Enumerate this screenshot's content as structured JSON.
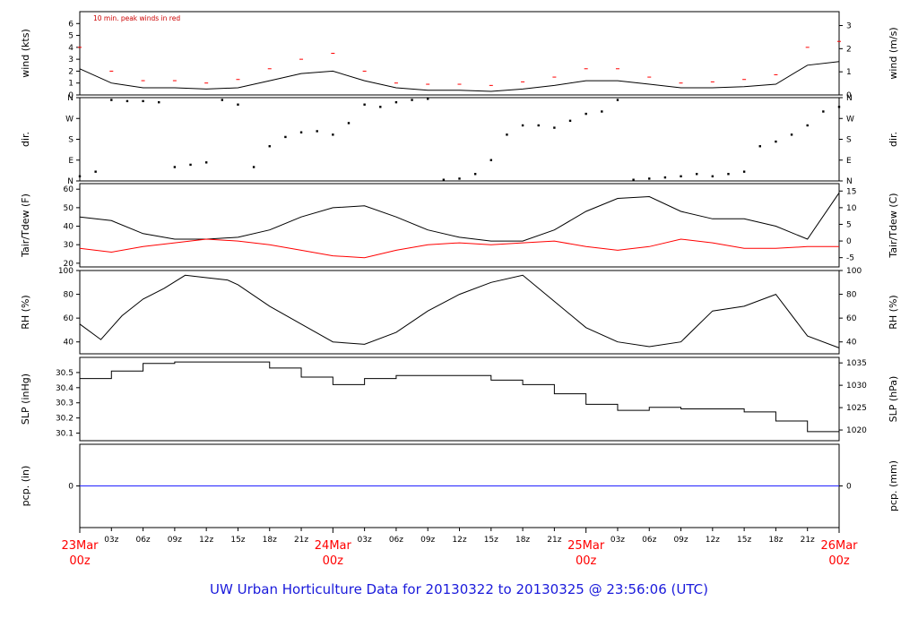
{
  "title": "UW Urban Horticulture Data for 20130322  to  20130325 @ 23:56:06  (UTC)",
  "chart_data": [
    {
      "type": "line",
      "id": "wind",
      "ylabel_left": "wind (kts)",
      "ylabel_right": "wind (m/s)",
      "annotation": "10 min. peak winds in red",
      "ylim": [
        0,
        7
      ],
      "yticks_left": [
        0,
        1,
        2,
        3,
        4,
        5,
        6
      ],
      "yticks_right": [
        0,
        1,
        2,
        3
      ],
      "series": [
        {
          "role": "mean",
          "color": "#000000",
          "x": [
            0,
            3,
            6,
            9,
            12,
            15,
            18,
            21,
            24,
            27,
            30,
            33,
            36,
            39,
            42,
            45,
            48,
            51,
            54,
            57,
            60,
            63,
            66,
            69,
            72
          ],
          "y": [
            2.2,
            1.0,
            0.6,
            0.6,
            0.5,
            0.6,
            1.2,
            1.8,
            2.0,
            1.2,
            0.6,
            0.4,
            0.4,
            0.3,
            0.5,
            0.8,
            1.2,
            1.2,
            0.9,
            0.6,
            0.6,
            0.7,
            0.9,
            2.5,
            2.8
          ]
        },
        {
          "role": "peak",
          "color": "#ff0000",
          "x": [
            0,
            3,
            6,
            9,
            12,
            15,
            18,
            21,
            24,
            27,
            30,
            33,
            36,
            39,
            42,
            45,
            48,
            51,
            54,
            57,
            60,
            63,
            66,
            69,
            72
          ],
          "y": [
            4.0,
            2.0,
            1.2,
            1.2,
            1.0,
            1.3,
            2.2,
            3.0,
            3.5,
            2.0,
            1.0,
            0.9,
            0.9,
            0.8,
            1.1,
            1.5,
            2.2,
            2.2,
            1.5,
            1.0,
            1.1,
            1.3,
            1.7,
            4.0,
            4.5
          ]
        }
      ]
    },
    {
      "type": "scatter",
      "id": "dir",
      "ylabel_left": "dir.",
      "ylabel_right": "dir.",
      "ylim": [
        0,
        360
      ],
      "yticks": [
        {
          "v": 0,
          "label": "N"
        },
        {
          "v": 90,
          "label": "E"
        },
        {
          "v": 180,
          "label": "S"
        },
        {
          "v": 270,
          "label": "W"
        },
        {
          "v": 360,
          "label": "N"
        }
      ],
      "series": [
        {
          "color": "#000000",
          "x": [
            0,
            1.5,
            3,
            4.5,
            6,
            7.5,
            9,
            10.5,
            12,
            13.5,
            15,
            16.5,
            18,
            19.5,
            21,
            22.5,
            24,
            25.5,
            27,
            28.5,
            30,
            31.5,
            33,
            34.5,
            36,
            37.5,
            39,
            40.5,
            42,
            43.5,
            45,
            46.5,
            48,
            49.5,
            51,
            52.5,
            54,
            55.5,
            57,
            58.5,
            60,
            61.5,
            63,
            64.5,
            66,
            67.5,
            69,
            70.5,
            72
          ],
          "y": [
            20,
            40,
            350,
            345,
            345,
            340,
            60,
            70,
            80,
            350,
            330,
            60,
            150,
            190,
            210,
            215,
            200,
            250,
            330,
            320,
            340,
            350,
            355,
            5,
            10,
            30,
            90,
            200,
            240,
            240,
            230,
            260,
            290,
            300,
            350,
            5,
            10,
            15,
            20,
            30,
            20,
            30,
            40,
            150,
            170,
            200,
            240,
            300,
            320
          ]
        }
      ]
    },
    {
      "type": "line",
      "id": "temp",
      "ylabel_left": "Tair/Tdew (F)",
      "ylabel_right": "Tair/Tdew (C)",
      "ylim": [
        18,
        63
      ],
      "yticks_left": [
        20,
        30,
        40,
        50,
        60
      ],
      "yticks_right": [
        -5,
        0,
        5,
        10,
        15
      ],
      "series": [
        {
          "role": "Tair",
          "color": "#000000",
          "x": [
            0,
            3,
            6,
            9,
            12,
            15,
            18,
            21,
            24,
            27,
            30,
            33,
            36,
            39,
            42,
            45,
            48,
            51,
            54,
            57,
            60,
            63,
            66,
            69,
            72
          ],
          "y": [
            45,
            43,
            36,
            33,
            33,
            34,
            38,
            45,
            50,
            51,
            45,
            38,
            34,
            32,
            32,
            38,
            48,
            55,
            56,
            48,
            44,
            44,
            40,
            33,
            58
          ]
        },
        {
          "role": "Tdew",
          "color": "#ff0000",
          "x": [
            0,
            3,
            6,
            9,
            12,
            15,
            18,
            21,
            24,
            27,
            30,
            33,
            36,
            39,
            42,
            45,
            48,
            51,
            54,
            57,
            60,
            63,
            66,
            69,
            72
          ],
          "y": [
            28,
            26,
            29,
            31,
            33,
            32,
            30,
            27,
            24,
            23,
            27,
            30,
            31,
            30,
            31,
            32,
            29,
            27,
            29,
            33,
            31,
            28,
            28,
            29,
            29
          ]
        }
      ]
    },
    {
      "type": "line",
      "id": "rh",
      "ylabel_left": "RH (%)",
      "ylabel_right": "RH (%)",
      "ylim": [
        30,
        100
      ],
      "yticks_left": [
        40,
        60,
        80,
        100
      ],
      "yticks_right": [
        40,
        60,
        80,
        100
      ],
      "series": [
        {
          "color": "#000000",
          "x": [
            0,
            2,
            4,
            6,
            8,
            10,
            12,
            14,
            15,
            18,
            21,
            24,
            27,
            30,
            33,
            36,
            39,
            42,
            45,
            48,
            51,
            54,
            57,
            60,
            63,
            66,
            69,
            72
          ],
          "y": [
            55,
            42,
            62,
            76,
            85,
            96,
            94,
            92,
            88,
            70,
            55,
            40,
            38,
            48,
            66,
            80,
            90,
            96,
            74,
            52,
            40,
            36,
            40,
            66,
            70,
            80,
            45,
            35
          ]
        }
      ]
    },
    {
      "type": "line",
      "id": "slp",
      "ylabel_left": "SLP (inHg)",
      "ylabel_right": "SLP (hPa)",
      "ylim": [
        30.05,
        30.6
      ],
      "yticks_left": [
        30.1,
        30.2,
        30.3,
        30.4,
        30.5
      ],
      "yticks_right": [
        1020,
        1025,
        1030,
        1035
      ],
      "series": [
        {
          "color": "#000000",
          "x": [
            0,
            3,
            6,
            9,
            12,
            15,
            18,
            21,
            24,
            27,
            30,
            33,
            36,
            39,
            42,
            45,
            48,
            51,
            54,
            57,
            60,
            63,
            66,
            69,
            72
          ],
          "y": [
            30.46,
            30.51,
            30.56,
            30.57,
            30.57,
            30.57,
            30.53,
            30.47,
            30.42,
            30.46,
            30.48,
            30.48,
            30.48,
            30.45,
            30.42,
            30.36,
            30.29,
            30.25,
            30.27,
            30.26,
            30.26,
            30.24,
            30.18,
            30.11,
            30.08
          ]
        }
      ]
    },
    {
      "type": "line",
      "id": "pcp",
      "ylabel_left": "pcp. (in)",
      "ylabel_right": "pcp. (mm)",
      "ylim": [
        -1,
        1
      ],
      "yticks_left": [
        0
      ],
      "yticks_right": [
        0
      ],
      "series": [
        {
          "color": "#2020ff",
          "x": [
            0,
            72
          ],
          "y": [
            0,
            0
          ]
        }
      ]
    }
  ],
  "xaxis": {
    "range_hours": [
      0,
      72
    ],
    "hour_ticks": [
      "03z",
      "06z",
      "09z",
      "12z",
      "15z",
      "18z",
      "21z",
      "03z",
      "06z",
      "09z",
      "12z",
      "15z",
      "18z",
      "21z",
      "03z",
      "06z",
      "09z",
      "12z",
      "15z",
      "18z",
      "21z"
    ],
    "hour_tick_hours": [
      3,
      6,
      9,
      12,
      15,
      18,
      21,
      27,
      30,
      33,
      36,
      39,
      42,
      45,
      51,
      54,
      57,
      60,
      63,
      66,
      69
    ],
    "day_labels": [
      {
        "hour": 0,
        "date": "23Mar",
        "time": "00z"
      },
      {
        "hour": 24,
        "date": "24Mar",
        "time": "00z"
      },
      {
        "hour": 48,
        "date": "25Mar",
        "time": "00z"
      },
      {
        "hour": 72,
        "date": "26Mar",
        "time": "00z"
      }
    ]
  }
}
